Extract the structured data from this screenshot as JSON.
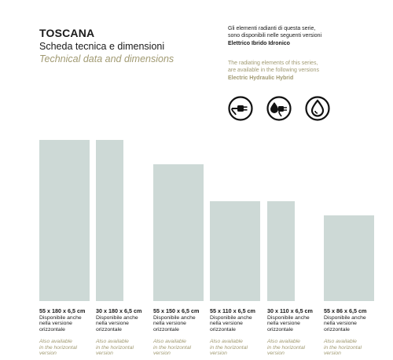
{
  "header": {
    "title": "TOSCANA",
    "subtitle_it": "Scheda tecnica e dimensioni",
    "subtitle_en": "Technical data and dimensions"
  },
  "versions_note": {
    "it_line1": "Gli elementi radianti di questa serie,",
    "it_line2": "sono disponibili nelle seguenti versioni",
    "it_versions": "Elettrico Ibrido Idronico",
    "en_line1": "The radiating elements of this series,",
    "en_line2": "are available in the following versions",
    "en_versions": "Electric Hydraulic Hybrid"
  },
  "icons": [
    "electric-plug-icon",
    "hybrid-plug-drop-icon",
    "water-drop-icon"
  ],
  "colors": {
    "bar": "#cdd9d6",
    "accent_gold": "#a19a72",
    "text": "#1a1a1a"
  },
  "items": [
    {
      "size": "55 x 180 x 6,5 cm",
      "note_it_1": "Disponibile anche",
      "note_it_2": "nella versione",
      "note_it_3": "orizzontale",
      "note_en_1": "Also available",
      "note_en_2": "in the horizontal",
      "note_en_3": "version"
    },
    {
      "size": "30 x 180 x 6,5 cm",
      "note_it_1": "Disponibile anche",
      "note_it_2": "nella versione",
      "note_it_3": "orizzontale",
      "note_en_1": "Also available",
      "note_en_2": "in the horizontal",
      "note_en_3": "version"
    },
    {
      "size": "55 x 150 x 6,5 cm",
      "note_it_1": "Disponibile anche",
      "note_it_2": "nella versione",
      "note_it_3": "orizzontale",
      "note_en_1": "Also available",
      "note_en_2": "in the horizontal",
      "note_en_3": "version"
    },
    {
      "size": "55 x 110 x 6,5 cm",
      "note_it_1": "Disponibile anche",
      "note_it_2": "nella versione",
      "note_it_3": "orizzontale",
      "note_en_1": "Also available",
      "note_en_2": "in the horizontal",
      "note_en_3": "version"
    },
    {
      "size": "30 x 110 x 6,5 cm",
      "note_it_1": "Disponibile anche",
      "note_it_2": "nella versione",
      "note_it_3": "orizzontale",
      "note_en_1": "Also available",
      "note_en_2": "in the horizontal",
      "note_en_3": "version"
    },
    {
      "size": "55 x 86 x 6,5 cm",
      "note_it_1": "Disponibile anche",
      "note_it_2": "nella versione",
      "note_it_3": "orizzontale",
      "note_en_1": "Also available",
      "note_en_2": "in the horizontal",
      "note_en_3": "version"
    }
  ]
}
